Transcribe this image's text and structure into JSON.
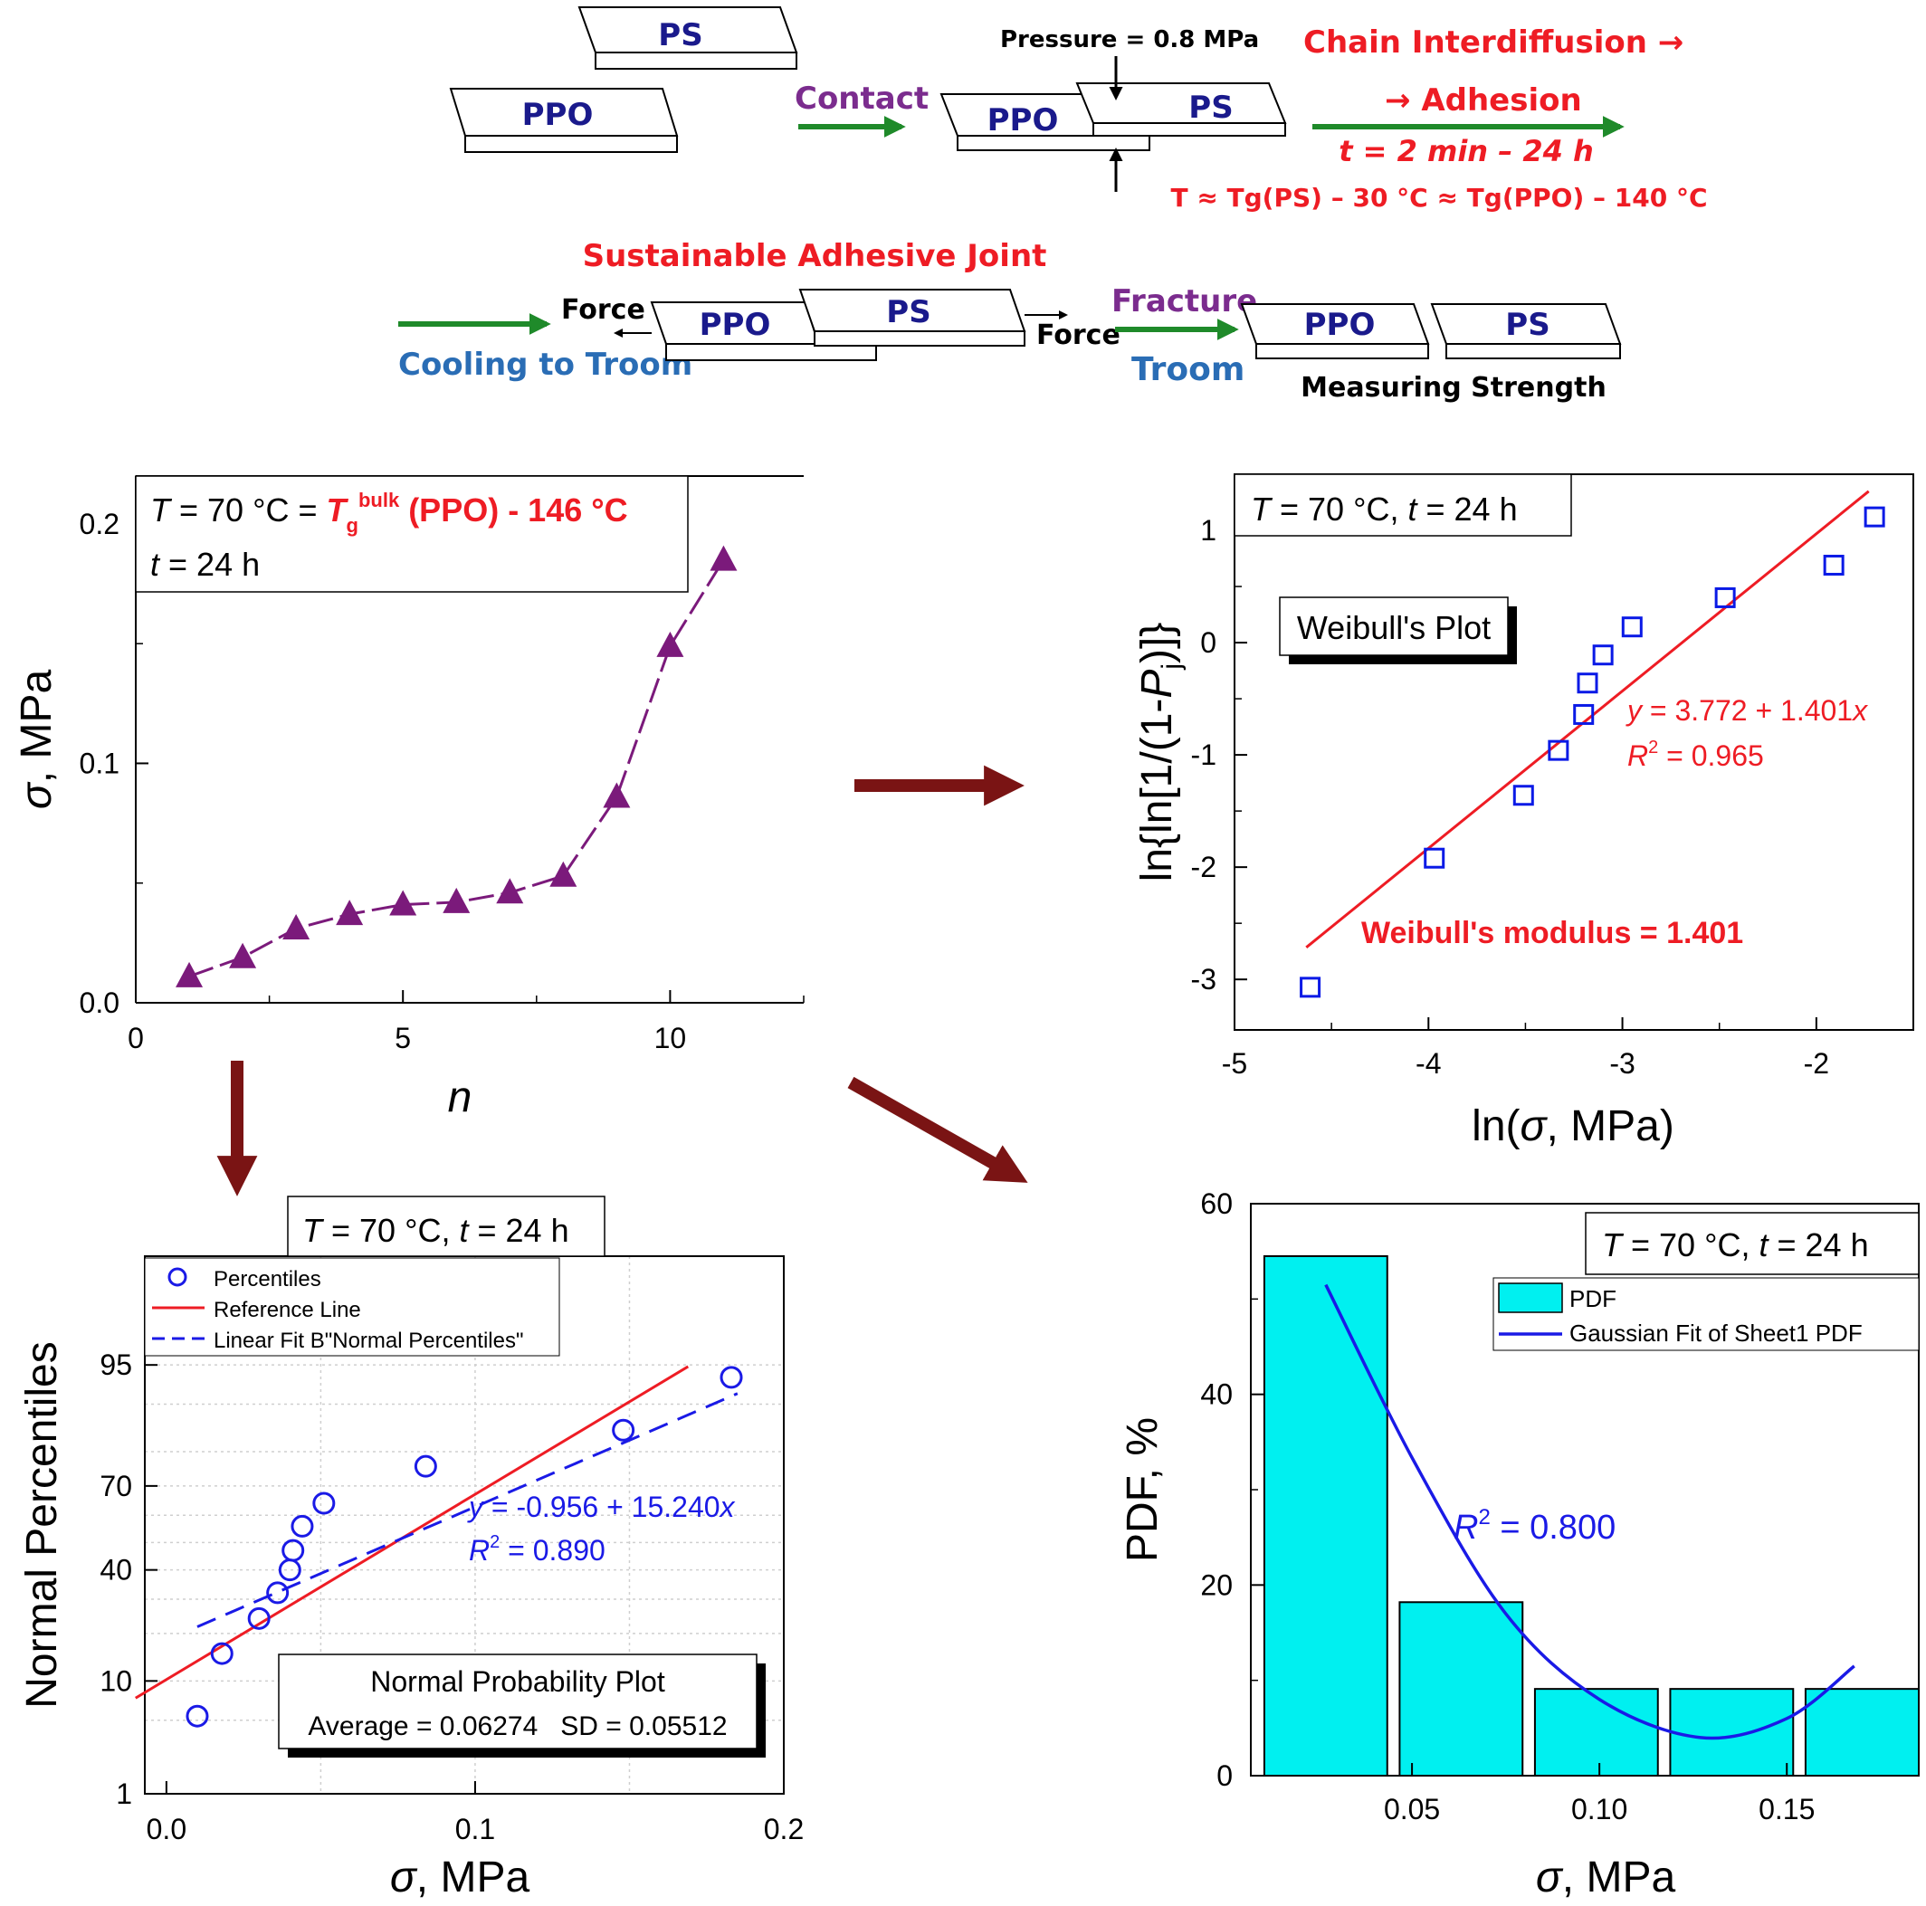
{
  "schematic": {
    "row1": {
      "ps_label": "PS",
      "ppo_label": "PPO",
      "contact": "Contact",
      "pressure": "Pressure = 0.8 MPa",
      "chain_line1": "Chain Interdiffusion →",
      "chain_line2": "→ Adhesion",
      "time_range": "t = 2 min – 24 h",
      "temperature": "T ≈ Tg(PS) – 30 °C ≈ Tg(PPO) – 140 °C"
    },
    "row2": {
      "joint_title": "Sustainable Adhesive Joint",
      "force": "Force",
      "cooling": "Cooling to Troom",
      "fracture": "Fracture",
      "troom": "Troom",
      "measuring": "Measuring Strength"
    }
  },
  "colors": {
    "ps_ppo_text": "#1a1a8c",
    "purple": "#7b2c8e",
    "red": "#ee1c24",
    "green": "#1f8a2a",
    "blue_text": "#2a6db5",
    "dark_arrow": "#7a1414",
    "triangle": "#7b1a7b",
    "weibull_square": "#0a1ae6",
    "histogram_fill": "#00f0f0",
    "gauss_line": "#1a1ae6",
    "fit_dashed": "#1a1ae6",
    "ref_line": "#ee1c24"
  },
  "panels": {
    "a": {
      "annotation_line1": "T = 70 °C = Tgbulk (PPO) - 146 °C",
      "annotation_line2": "t = 24 h"
    },
    "b": {
      "annotation": "T = 70 °C, t = 24 h",
      "legend_title": "Weibull's Plot",
      "equation": "y = 3.772 + 1.401x",
      "r2": "R2 = 0.965",
      "modulus": "Weibull's modulus = 1.401"
    },
    "c": {
      "annotation": "T = 70 °C, t = 24 h",
      "legend": [
        "Percentiles",
        "Reference Line",
        "Linear Fit B\"Normal Percentiles\""
      ],
      "equation": "y = -0.956 + 15.240x",
      "r2": "R2 = 0.890",
      "box_title": "Normal Probability Plot",
      "box_stats": "Average = 0.06274   SD = 0.05512"
    },
    "d": {
      "annotation": "T = 70 °C, t = 24 h",
      "legend": [
        "PDF",
        "Gaussian Fit of Sheet1 PDF"
      ],
      "r2": "R2 = 0.800"
    }
  },
  "chart_data": [
    {
      "id": "a",
      "type": "line",
      "title": "",
      "xlabel": "n",
      "ylabel": "σ, MPa",
      "xlim": [
        0,
        12.5
      ],
      "ylim": [
        0,
        0.22
      ],
      "xticks": [
        0,
        5,
        10
      ],
      "yticks": [
        0.0,
        0.1,
        0.2
      ],
      "series": [
        {
          "x": [
            1,
            2,
            3,
            4,
            5,
            6,
            7,
            8,
            9,
            10,
            11
          ],
          "y": [
            0.011,
            0.019,
            0.031,
            0.037,
            0.041,
            0.042,
            0.046,
            0.053,
            0.086,
            0.149,
            0.185
          ]
        }
      ]
    },
    {
      "id": "b",
      "type": "scatter",
      "title": "",
      "xlabel": "ln(σ, MPa)",
      "ylabel": "ln{ln[1/(1-Pj)]}",
      "xlim": [
        -5,
        -1.5
      ],
      "ylim": [
        -3.45,
        1.5
      ],
      "xticks": [
        -5,
        -4,
        -3,
        -2
      ],
      "yticks": [
        -3,
        -2,
        -1,
        0,
        1
      ],
      "series": [
        {
          "x": [
            -4.61,
            -3.97,
            -3.51,
            -3.33,
            -3.2,
            -3.18,
            -3.1,
            -2.95,
            -2.47,
            -1.91,
            -1.7
          ],
          "y": [
            -3.07,
            -1.92,
            -1.36,
            -0.96,
            -0.64,
            -0.36,
            -0.11,
            0.14,
            0.4,
            0.69,
            1.12
          ]
        }
      ],
      "fit": {
        "intercept": 3.772,
        "slope": 1.401,
        "x_range": [
          -4.63,
          -1.73
        ]
      }
    },
    {
      "id": "c",
      "type": "scatter",
      "title": "",
      "xlabel": "σ, MPa",
      "ylabel": "Normal Percentiles",
      "xlim": [
        -0.007,
        0.2
      ],
      "ylim": [
        1,
        99.6
      ],
      "yscale": "probability",
      "xticks": [
        0.0,
        0.1,
        0.2
      ],
      "yticks": [
        1,
        10,
        40,
        70,
        95
      ],
      "series": [
        {
          "name": "Percentiles",
          "x": [
            0.01,
            0.018,
            0.03,
            0.036,
            0.04,
            0.041,
            0.044,
            0.051,
            0.084,
            0.148,
            0.183
          ],
          "y": [
            5.4,
            15.2,
            24.1,
            32.1,
            40.0,
            47.1,
            56.0,
            64.2,
            76.0,
            85.1,
            93.7
          ]
        }
      ],
      "reference_line": {
        "x": [
          -0.01,
          0.169
        ],
        "z": [
          -1.44,
          1.63
        ]
      },
      "linear_fit": {
        "x": [
          0.01,
          0.185
        ],
        "z": [
          -0.78,
          1.38
        ]
      }
    },
    {
      "id": "d",
      "type": "bar",
      "title": "",
      "xlabel": "σ, MPa",
      "ylabel": "PDF, %",
      "xlim": [
        0.007,
        0.1852
      ],
      "ylim": [
        0,
        60
      ],
      "xticks": [
        0.05,
        0.1,
        0.15
      ],
      "yticks": [
        0,
        20,
        40,
        60
      ],
      "bins": [
        [
          0.0106,
          0.0434
        ],
        [
          0.0467,
          0.0795
        ],
        [
          0.0828,
          0.1156
        ],
        [
          0.1189,
          0.1517
        ],
        [
          0.155,
          0.1878
        ]
      ],
      "values": [
        54.5,
        18.2,
        9.1,
        9.1,
        9.1
      ],
      "gauss_fit": {
        "x": [
          0.027,
          0.0505,
          0.075,
          0.1,
          0.127,
          0.15,
          0.168
        ],
        "y": [
          51.5,
          33.0,
          17.0,
          8.0,
          4.0,
          6.0,
          11.5
        ]
      }
    }
  ]
}
